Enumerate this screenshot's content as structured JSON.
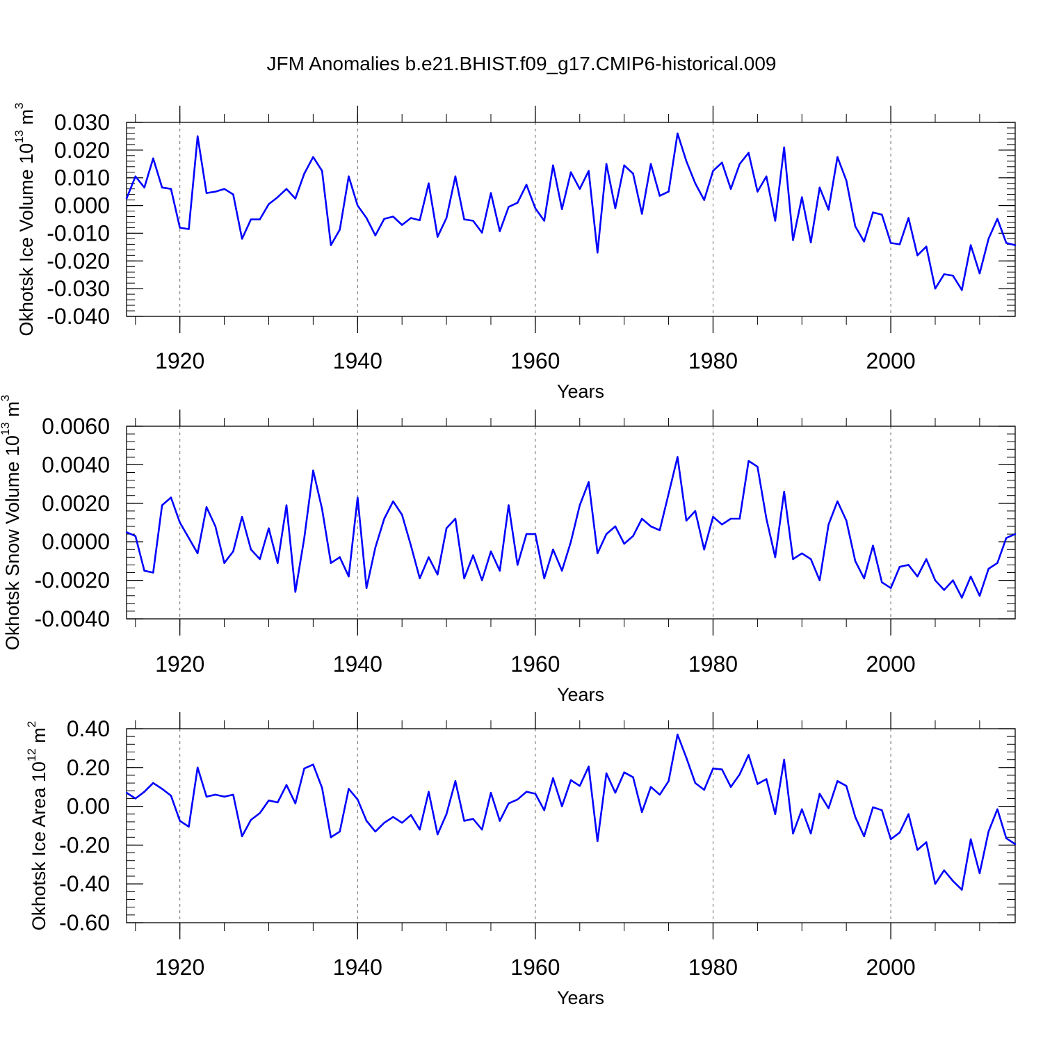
{
  "title": "JFM Anomalies b.e21.BHIST.f09_g17.CMIP6-historical.009",
  "line_color": "#0000ff",
  "chart_data": [
    {
      "type": "line",
      "ylabel_main": "Okhotsk Ice Volume 10",
      "ylabel_exp": "13",
      "ylabel_unit": " m",
      "ylabel_unit_exp": "3",
      "xlabel": "Years",
      "xlim": [
        1914,
        2014
      ],
      "ylim": [
        -0.04,
        0.03
      ],
      "ytick_values": [
        -0.04,
        -0.03,
        -0.02,
        -0.01,
        0.0,
        0.01,
        0.02,
        0.03
      ],
      "ytick_labels": [
        "-0.040",
        "-0.030",
        "-0.020",
        "-0.010",
        "0.000",
        "0.010",
        "0.020",
        "0.030"
      ],
      "xtick_values": [
        1920,
        1940,
        1960,
        1980,
        2000
      ],
      "xtick_labels": [
        "1920",
        "1940",
        "1960",
        "1980",
        "2000"
      ],
      "x": [
        1914,
        1915,
        1916,
        1917,
        1918,
        1919,
        1920,
        1921,
        1922,
        1923,
        1924,
        1925,
        1926,
        1927,
        1928,
        1929,
        1930,
        1931,
        1932,
        1933,
        1934,
        1935,
        1936,
        1937,
        1938,
        1939,
        1940,
        1941,
        1942,
        1943,
        1944,
        1945,
        1946,
        1947,
        1948,
        1949,
        1950,
        1951,
        1952,
        1953,
        1954,
        1955,
        1956,
        1957,
        1958,
        1959,
        1960,
        1961,
        1962,
        1963,
        1964,
        1965,
        1966,
        1967,
        1968,
        1969,
        1970,
        1971,
        1972,
        1973,
        1974,
        1975,
        1976,
        1977,
        1978,
        1979,
        1980,
        1981,
        1982,
        1983,
        1984,
        1985,
        1986,
        1987,
        1988,
        1989,
        1990,
        1991,
        1992,
        1993,
        1994,
        1995,
        1996,
        1997,
        1998,
        1999,
        2000,
        2001,
        2002,
        2003,
        2004,
        2005,
        2006,
        2007,
        2008,
        2009,
        2010,
        2011,
        2012,
        2013,
        2014
      ],
      "values": [
        0.0025,
        0.0105,
        0.0065,
        0.017,
        0.0065,
        0.006,
        -0.008,
        -0.0085,
        0.025,
        0.0045,
        0.005,
        0.006,
        0.004,
        -0.012,
        -0.005,
        -0.005,
        0.0005,
        0.003,
        0.006,
        0.0025,
        0.0115,
        0.0175,
        0.0125,
        -0.0143,
        -0.0087,
        0.0105,
        0.0,
        -0.0045,
        -0.0108,
        -0.0048,
        -0.004,
        -0.007,
        -0.0045,
        -0.0053,
        0.008,
        -0.0113,
        -0.0045,
        0.0105,
        -0.005,
        -0.0055,
        -0.0098,
        0.0045,
        -0.0093,
        -0.0005,
        0.001,
        0.0075,
        -0.001,
        -0.0055,
        0.0145,
        -0.0013,
        0.012,
        0.006,
        0.0125,
        -0.017,
        0.015,
        -0.001,
        0.0145,
        0.0115,
        -0.003,
        0.015,
        0.0035,
        0.005,
        0.026,
        0.016,
        0.008,
        0.002,
        0.0125,
        0.0155,
        0.006,
        0.015,
        0.019,
        0.005,
        0.0105,
        -0.0055,
        0.021,
        -0.0125,
        0.003,
        -0.0133,
        0.0065,
        -0.0015,
        0.0175,
        0.009,
        -0.0075,
        -0.013,
        -0.0025,
        -0.0033,
        -0.0135,
        -0.014,
        -0.0045,
        -0.018,
        -0.0148,
        -0.03,
        -0.0248,
        -0.0253,
        -0.0305,
        -0.0143,
        -0.0245,
        -0.012,
        -0.0048,
        -0.0135,
        -0.0143
      ]
    },
    {
      "type": "line",
      "ylabel_main": "Okhotsk Snow Volume 10",
      "ylabel_exp": "13",
      "ylabel_unit": " m",
      "ylabel_unit_exp": "3",
      "xlabel": "Years",
      "xlim": [
        1914,
        2014
      ],
      "ylim": [
        -0.004,
        0.006
      ],
      "ytick_values": [
        -0.004,
        -0.002,
        0.0,
        0.002,
        0.004,
        0.006
      ],
      "ytick_labels": [
        "-0.0040",
        "-0.0020",
        "0.0000",
        "0.0020",
        "0.0040",
        "0.0060"
      ],
      "xtick_values": [
        1920,
        1940,
        1960,
        1980,
        2000
      ],
      "xtick_labels": [
        "1920",
        "1940",
        "1960",
        "1980",
        "2000"
      ],
      "x": [
        1914,
        1915,
        1916,
        1917,
        1918,
        1919,
        1920,
        1921,
        1922,
        1923,
        1924,
        1925,
        1926,
        1927,
        1928,
        1929,
        1930,
        1931,
        1932,
        1933,
        1934,
        1935,
        1936,
        1937,
        1938,
        1939,
        1940,
        1941,
        1942,
        1943,
        1944,
        1945,
        1946,
        1947,
        1948,
        1949,
        1950,
        1951,
        1952,
        1953,
        1954,
        1955,
        1956,
        1957,
        1958,
        1959,
        1960,
        1961,
        1962,
        1963,
        1964,
        1965,
        1966,
        1967,
        1968,
        1969,
        1970,
        1971,
        1972,
        1973,
        1974,
        1975,
        1976,
        1977,
        1978,
        1979,
        1980,
        1981,
        1982,
        1983,
        1984,
        1985,
        1986,
        1987,
        1988,
        1989,
        1990,
        1991,
        1992,
        1993,
        1994,
        1995,
        1996,
        1997,
        1998,
        1999,
        2000,
        2001,
        2002,
        2003,
        2004,
        2005,
        2006,
        2007,
        2008,
        2009,
        2010,
        2011,
        2012,
        2013,
        2014
      ],
      "values": [
        0.0005,
        0.0003,
        -0.0015,
        -0.0016,
        0.0019,
        0.0023,
        0.001,
        0.0002,
        -0.0006,
        0.0018,
        0.0008,
        -0.0011,
        -0.0005,
        0.0013,
        -0.0004,
        -0.0009,
        0.0007,
        -0.0011,
        0.0019,
        -0.0026,
        0.0002,
        0.0037,
        0.0017,
        -0.0011,
        -0.0008,
        -0.0018,
        0.0023,
        -0.0024,
        -0.0003,
        0.0012,
        0.0021,
        0.0014,
        -0.0002,
        -0.0019,
        -0.0008,
        -0.0017,
        0.0007,
        0.0012,
        -0.0019,
        -0.0007,
        -0.002,
        -0.0005,
        -0.0015,
        0.0019,
        -0.0012,
        0.0004,
        0.0004,
        -0.0019,
        -0.0004,
        -0.0015,
        0.0,
        0.0019,
        0.0031,
        -0.0006,
        0.0004,
        0.0008,
        -0.0001,
        0.0003,
        0.0012,
        0.0008,
        0.0006,
        0.0025,
        0.0044,
        0.0011,
        0.0016,
        -0.0004,
        0.0013,
        0.0009,
        0.0012,
        0.0012,
        0.0042,
        0.0039,
        0.0012,
        -0.0008,
        0.0026,
        -0.0009,
        -0.0006,
        -0.0009,
        -0.002,
        0.0009,
        0.0021,
        0.0011,
        -0.001,
        -0.0019,
        -0.0002,
        -0.0021,
        -0.0024,
        -0.0013,
        -0.0012,
        -0.0018,
        -0.0009,
        -0.002,
        -0.0025,
        -0.002,
        -0.0029,
        -0.0018,
        -0.0028,
        -0.0014,
        -0.0011,
        0.0002,
        0.0004
      ]
    },
    {
      "type": "line",
      "ylabel_main": "Okhotsk Ice Area 10",
      "ylabel_exp": "12",
      "ylabel_unit": " m",
      "ylabel_unit_exp": "2",
      "xlabel": "Years",
      "xlim": [
        1914,
        2014
      ],
      "ylim": [
        -0.6,
        0.4
      ],
      "ytick_values": [
        -0.6,
        -0.4,
        -0.2,
        0.0,
        0.2,
        0.4
      ],
      "ytick_labels": [
        "-0.60",
        "-0.40",
        "-0.20",
        "0.00",
        "0.20",
        "0.40"
      ],
      "xtick_values": [
        1920,
        1940,
        1960,
        1980,
        2000
      ],
      "xtick_labels": [
        "1920",
        "1940",
        "1960",
        "1980",
        "2000"
      ],
      "x": [
        1914,
        1915,
        1916,
        1917,
        1918,
        1919,
        1920,
        1921,
        1922,
        1923,
        1924,
        1925,
        1926,
        1927,
        1928,
        1929,
        1930,
        1931,
        1932,
        1933,
        1934,
        1935,
        1936,
        1937,
        1938,
        1939,
        1940,
        1941,
        1942,
        1943,
        1944,
        1945,
        1946,
        1947,
        1948,
        1949,
        1950,
        1951,
        1952,
        1953,
        1954,
        1955,
        1956,
        1957,
        1958,
        1959,
        1960,
        1961,
        1962,
        1963,
        1964,
        1965,
        1966,
        1967,
        1968,
        1969,
        1970,
        1971,
        1972,
        1973,
        1974,
        1975,
        1976,
        1977,
        1978,
        1979,
        1980,
        1981,
        1982,
        1983,
        1984,
        1985,
        1986,
        1987,
        1988,
        1989,
        1990,
        1991,
        1992,
        1993,
        1994,
        1995,
        1996,
        1997,
        1998,
        1999,
        2000,
        2001,
        2002,
        2003,
        2004,
        2005,
        2006,
        2007,
        2008,
        2009,
        2010,
        2011,
        2012,
        2013,
        2014
      ],
      "values": [
        0.07,
        0.04,
        0.075,
        0.12,
        0.09,
        0.055,
        -0.075,
        -0.105,
        0.2,
        0.05,
        0.06,
        0.05,
        0.06,
        -0.155,
        -0.07,
        -0.035,
        0.03,
        0.02,
        0.11,
        0.015,
        0.195,
        0.215,
        0.095,
        -0.16,
        -0.13,
        0.09,
        0.035,
        -0.075,
        -0.13,
        -0.085,
        -0.055,
        -0.085,
        -0.045,
        -0.12,
        0.075,
        -0.145,
        -0.04,
        0.13,
        -0.075,
        -0.065,
        -0.12,
        0.07,
        -0.075,
        0.015,
        0.035,
        0.075,
        0.065,
        -0.02,
        0.145,
        0.0,
        0.135,
        0.105,
        0.205,
        -0.18,
        0.17,
        0.07,
        0.175,
        0.15,
        -0.03,
        0.1,
        0.06,
        0.13,
        0.37,
        0.25,
        0.12,
        0.085,
        0.195,
        0.19,
        0.1,
        0.165,
        0.265,
        0.115,
        0.14,
        -0.04,
        0.24,
        -0.14,
        -0.015,
        -0.14,
        0.065,
        -0.01,
        0.13,
        0.105,
        -0.055,
        -0.155,
        -0.005,
        -0.02,
        -0.17,
        -0.135,
        -0.04,
        -0.225,
        -0.185,
        -0.4,
        -0.33,
        -0.385,
        -0.43,
        -0.17,
        -0.345,
        -0.13,
        -0.015,
        -0.165,
        -0.195
      ]
    }
  ]
}
